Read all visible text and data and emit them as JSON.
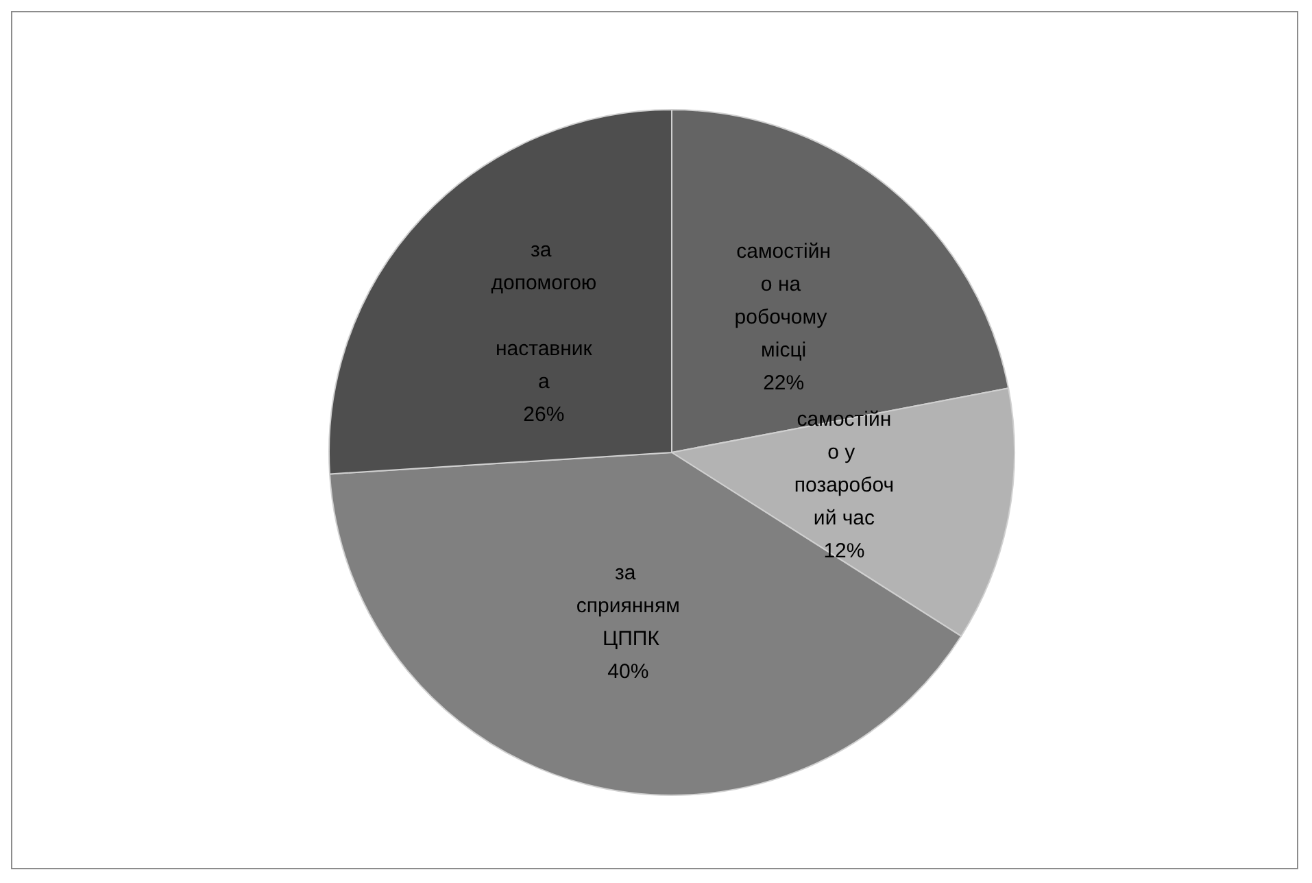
{
  "chart_data": {
    "type": "pie",
    "categories": [
      "самостійно на робочому місці",
      "самостійно у позаробочий час",
      "за сприянням ЦППК",
      "за допомогою наставника"
    ],
    "values": [
      22,
      12,
      40,
      26
    ],
    "colors": [
      "#646464",
      "#b3b3b3",
      "#808080",
      "#4e4e4e"
    ],
    "value_labels": [
      "22%",
      "12%",
      "40%",
      "26%"
    ],
    "legend": false
  }
}
